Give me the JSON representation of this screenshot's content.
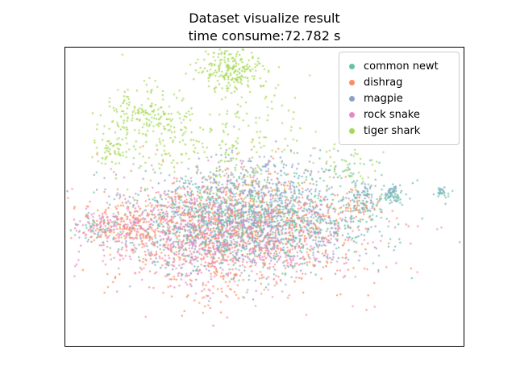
{
  "figure": {
    "background": "#ffffff"
  },
  "chart_data": {
    "type": "scatter",
    "title": "Dataset visualize result",
    "subtitle": "time consume:72.782 s",
    "axes": {
      "xlim": [
        0,
        1
      ],
      "ylim": [
        0,
        1
      ],
      "ticks": false,
      "grid": false,
      "border_color": "#000000"
    },
    "legend": {
      "position": "upper right",
      "entries": [
        {
          "label": "common newt",
          "color": "#66c2a5"
        },
        {
          "label": "dishrag",
          "color": "#fc8d62"
        },
        {
          "label": "magpie",
          "color": "#8da0cb"
        },
        {
          "label": "rock snake",
          "color": "#e78ac3"
        },
        {
          "label": "tiger shark",
          "color": "#a6d854"
        }
      ]
    },
    "point_radius": 1.1,
    "seed": 42,
    "series": [
      {
        "name": "common newt",
        "color": "#66c2a5",
        "clusters": [
          {
            "cx": 0.464,
            "cy": 0.419,
            "sx": 0.155,
            "sy": 0.082,
            "n": 850
          },
          {
            "cx": 0.081,
            "cy": 0.392,
            "sx": 0.028,
            "sy": 0.022,
            "n": 40
          },
          {
            "cx": 0.75,
            "cy": 0.487,
            "sx": 0.022,
            "sy": 0.03,
            "n": 45
          },
          {
            "cx": 0.823,
            "cy": 0.505,
            "sx": 0.014,
            "sy": 0.016,
            "n": 50
          },
          {
            "cx": 0.946,
            "cy": 0.511,
            "sx": 0.01,
            "sy": 0.011,
            "n": 18
          },
          {
            "cx": 0.706,
            "cy": 0.581,
            "sx": 0.04,
            "sy": 0.04,
            "n": 25
          }
        ]
      },
      {
        "name": "dishrag",
        "color": "#fc8d62",
        "clusters": [
          {
            "cx": 0.413,
            "cy": 0.387,
            "sx": 0.16,
            "sy": 0.095,
            "n": 1000
          },
          {
            "cx": 0.141,
            "cy": 0.401,
            "sx": 0.055,
            "sy": 0.035,
            "n": 130
          },
          {
            "cx": 0.726,
            "cy": 0.465,
            "sx": 0.03,
            "sy": 0.03,
            "n": 45
          },
          {
            "cx": 0.373,
            "cy": 0.169,
            "sx": 0.055,
            "sy": 0.048,
            "n": 22
          }
        ]
      },
      {
        "name": "magpie",
        "color": "#8da0cb",
        "clusters": [
          {
            "cx": 0.444,
            "cy": 0.427,
            "sx": 0.15,
            "sy": 0.085,
            "n": 950
          },
          {
            "cx": 0.504,
            "cy": 0.581,
            "sx": 0.08,
            "sy": 0.05,
            "n": 60
          },
          {
            "cx": 0.756,
            "cy": 0.5,
            "sx": 0.02,
            "sy": 0.025,
            "n": 30
          },
          {
            "cx": 0.825,
            "cy": 0.511,
            "sx": 0.012,
            "sy": 0.012,
            "n": 25
          },
          {
            "cx": 0.948,
            "cy": 0.513,
            "sx": 0.008,
            "sy": 0.008,
            "n": 10
          }
        ]
      },
      {
        "name": "rock snake",
        "color": "#e78ac3",
        "clusters": [
          {
            "cx": 0.393,
            "cy": 0.379,
            "sx": 0.16,
            "sy": 0.085,
            "n": 900
          },
          {
            "cx": 0.111,
            "cy": 0.398,
            "sx": 0.04,
            "sy": 0.025,
            "n": 90
          },
          {
            "cx": 0.302,
            "cy": 0.218,
            "sx": 0.03,
            "sy": 0.03,
            "n": 10
          }
        ]
      },
      {
        "name": "tiger shark",
        "color": "#a6d854",
        "clusters": [
          {
            "cx": 0.419,
            "cy": 0.925,
            "sx": 0.042,
            "sy": 0.036,
            "n": 220
          },
          {
            "cx": 0.198,
            "cy": 0.761,
            "sx": 0.048,
            "sy": 0.046,
            "n": 150
          },
          {
            "cx": 0.113,
            "cy": 0.659,
            "sx": 0.024,
            "sy": 0.027,
            "n": 55
          },
          {
            "cx": 0.373,
            "cy": 0.702,
            "sx": 0.14,
            "sy": 0.11,
            "n": 260
          },
          {
            "cx": 0.712,
            "cy": 0.608,
            "sx": 0.045,
            "sy": 0.05,
            "n": 40
          },
          {
            "cx": 0.444,
            "cy": 0.473,
            "sx": 0.12,
            "sy": 0.06,
            "n": 60
          }
        ]
      }
    ]
  }
}
